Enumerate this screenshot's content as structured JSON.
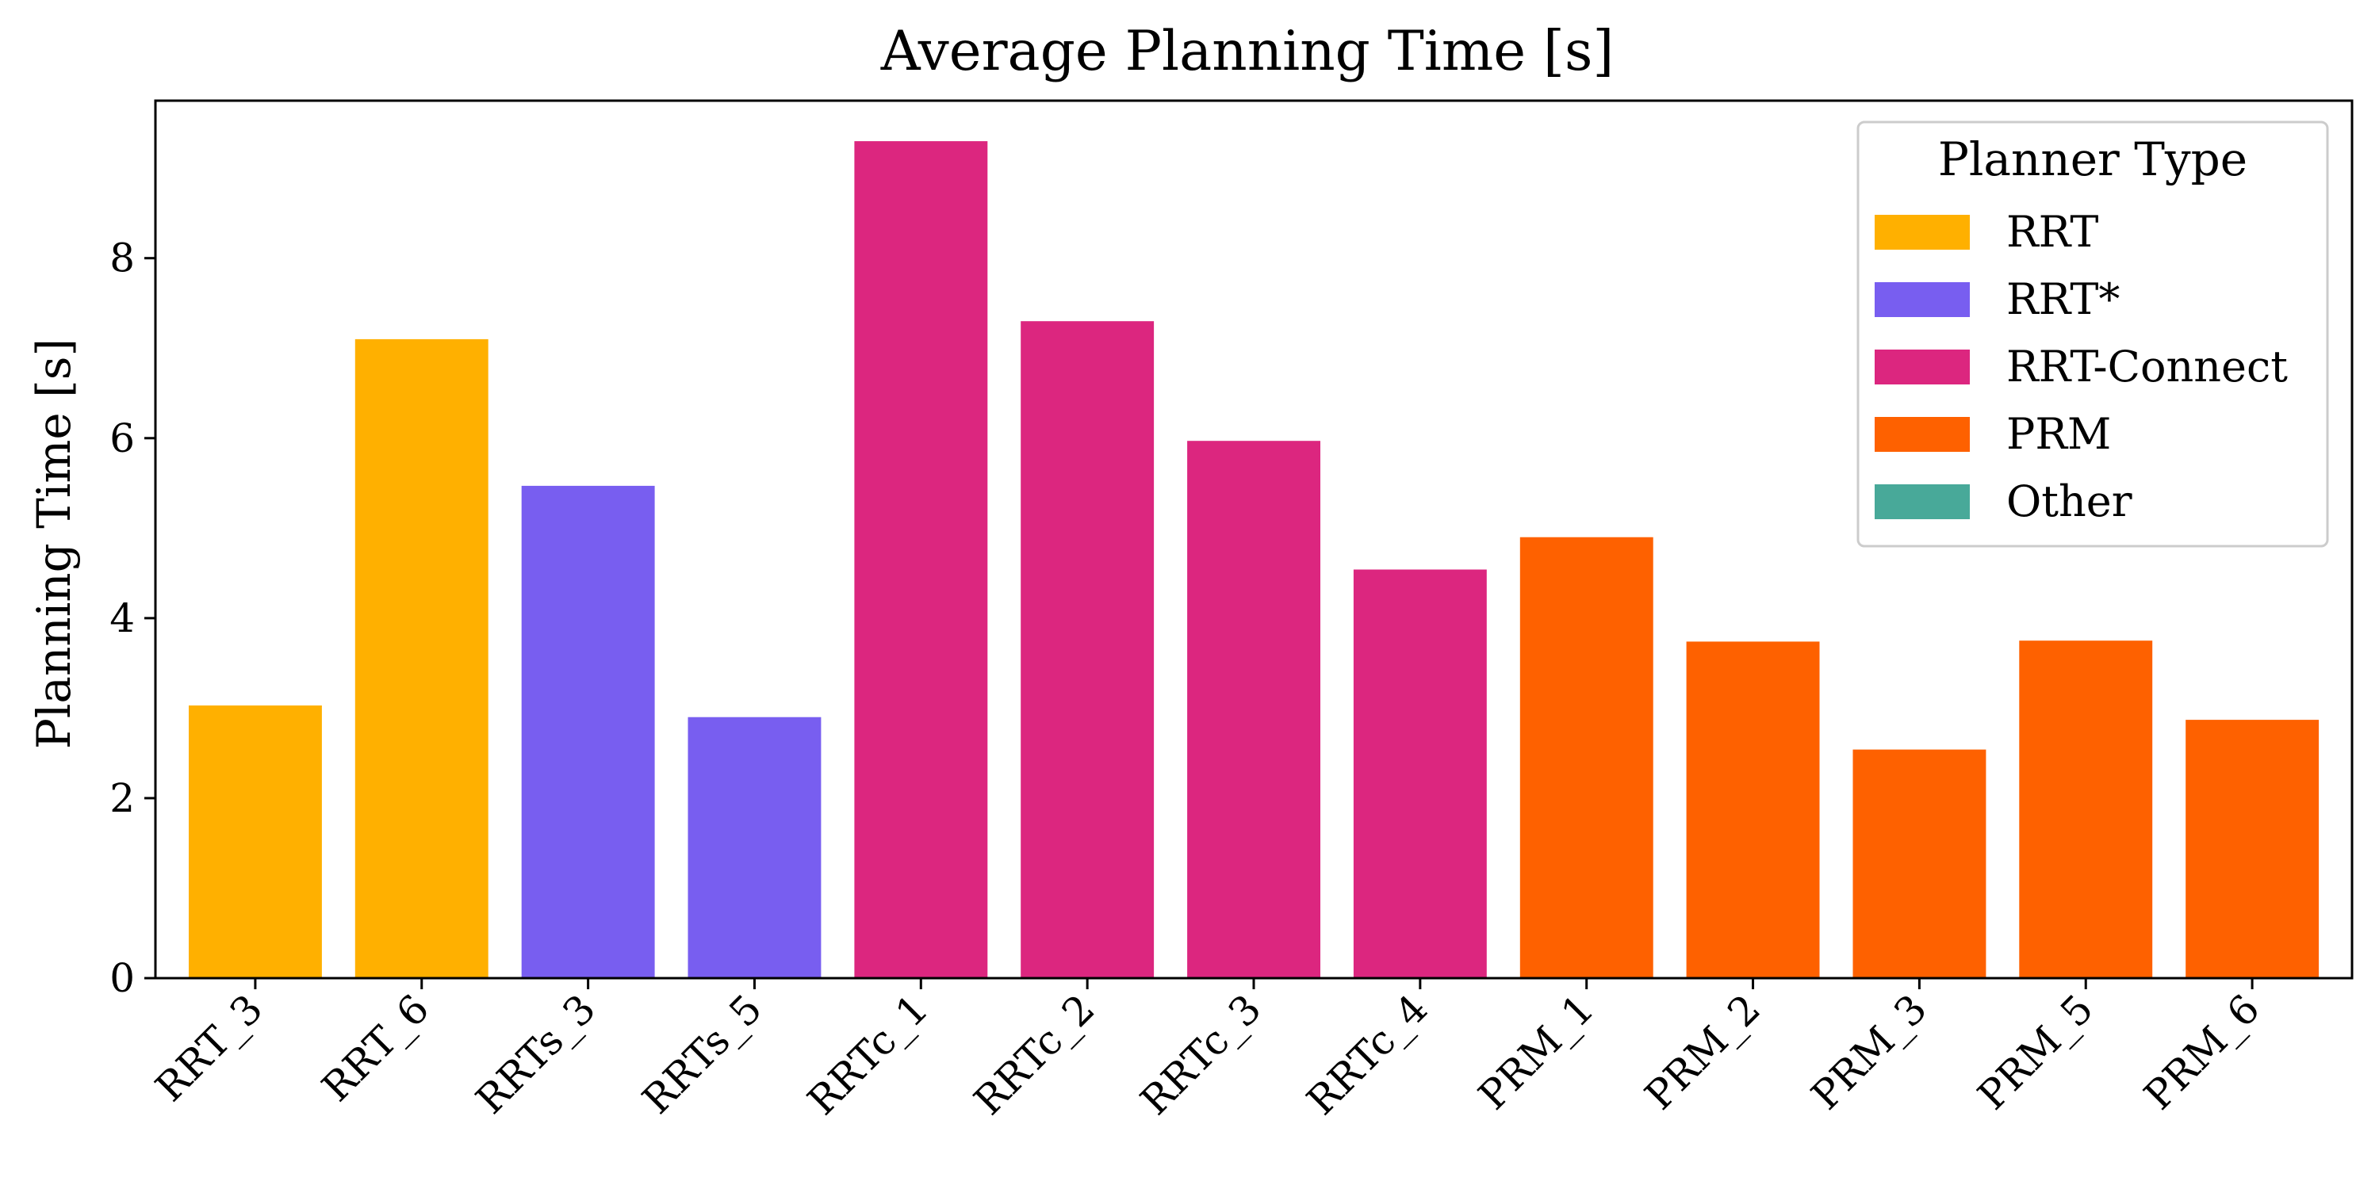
{
  "chart_data": {
    "type": "bar",
    "title": "Average Planning Time [s]",
    "xlabel": "",
    "ylabel": "Planning Time [s]",
    "ylim": [
      0,
      9.75
    ],
    "yticks": [
      0,
      2,
      4,
      6,
      8
    ],
    "grid": false,
    "categories": [
      "RRT_3",
      "RRT_6",
      "RRTs_3",
      "RRTs_5",
      "RRTc_1",
      "RRTc_2",
      "RRTc_3",
      "RRTc_4",
      "PRM_1",
      "PRM_2",
      "PRM_3",
      "PRM_5",
      "PRM_6"
    ],
    "values": [
      3.03,
      7.1,
      5.47,
      2.9,
      9.3,
      7.3,
      5.97,
      4.54,
      4.9,
      3.74,
      2.54,
      3.75,
      2.87
    ],
    "groups": [
      "RRT",
      "RRT",
      "RRT*",
      "RRT*",
      "RRT-Connect",
      "RRT-Connect",
      "RRT-Connect",
      "RRT-Connect",
      "PRM",
      "PRM",
      "PRM",
      "PRM",
      "PRM"
    ],
    "legend": {
      "title": "Planner Type",
      "placement": "top-right",
      "entries": [
        {
          "label": "RRT",
          "color": "#FFB000"
        },
        {
          "label": "RRT*",
          "color": "#785EF0"
        },
        {
          "label": "RRT-Connect",
          "color": "#DC267F"
        },
        {
          "label": "PRM",
          "color": "#FE6100"
        },
        {
          "label": "Other",
          "color": "#48A999"
        }
      ]
    }
  }
}
